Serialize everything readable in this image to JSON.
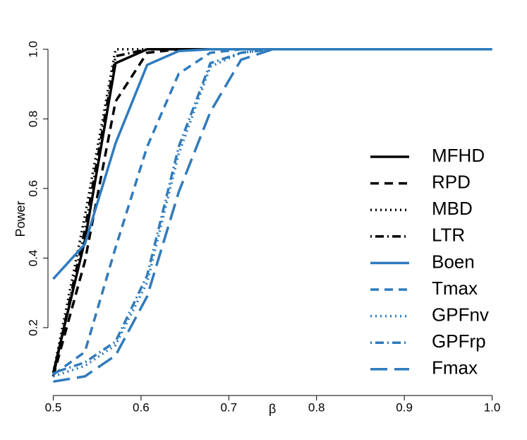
{
  "chart_data": {
    "type": "line",
    "xlabel": "β",
    "ylabel": "Power",
    "x": [
      0.5,
      0.536,
      0.571,
      0.607,
      0.643,
      0.679,
      0.714,
      0.75,
      0.786,
      0.821,
      0.857,
      0.893,
      0.929,
      0.964,
      1.0
    ],
    "xlim": [
      0.494,
      1.006
    ],
    "ylim": [
      0.005,
      1.03
    ],
    "xticks": [
      0.5,
      0.6,
      0.7,
      0.8,
      0.9,
      {
        "value": 1,
        "label": "1.0"
      }
    ],
    "yticks": [
      0.2,
      0.4,
      0.6,
      0.8,
      {
        "value": 1,
        "label": "1.0"
      }
    ],
    "legend": "right",
    "series": [
      {
        "name": "MFHD",
        "color": "#000000",
        "linestyle": "solid",
        "values": [
          0.07,
          0.45,
          0.96,
          1,
          1,
          1,
          1,
          1,
          1,
          1,
          1,
          1,
          1,
          1,
          1
        ]
      },
      {
        "name": "RPD",
        "color": "#000000",
        "linestyle": "dashed",
        "values": [
          0.06,
          0.39,
          0.85,
          0.99,
          1,
          1,
          1,
          1,
          1,
          1,
          1,
          1,
          1,
          1,
          1
        ]
      },
      {
        "name": "MBD",
        "color": "#000000",
        "linestyle": "dotted",
        "values": [
          0.07,
          0.52,
          1,
          1,
          1,
          1,
          1,
          1,
          1,
          1,
          1,
          1,
          1,
          1,
          1
        ]
      },
      {
        "name": "LTR",
        "color": "#000000",
        "linestyle": "dotdash",
        "values": [
          0.06,
          0.48,
          0.98,
          1,
          1,
          1,
          1,
          1,
          1,
          1,
          1,
          1,
          1,
          1,
          1
        ]
      },
      {
        "name": "Boen",
        "color": "#2f7bbd",
        "linestyle": "solid",
        "values": [
          0.34,
          0.44,
          0.73,
          0.955,
          0.995,
          1,
          1,
          1,
          1,
          1,
          1,
          1,
          1,
          1,
          1
        ]
      },
      {
        "name": "Tmax",
        "color": "#2f7bbd",
        "linestyle": "dashed",
        "values": [
          0.065,
          0.13,
          0.43,
          0.72,
          0.93,
          0.99,
          1,
          1,
          1,
          1,
          1,
          1,
          1,
          1,
          1
        ]
      },
      {
        "name": "GPFnv",
        "color": "#2f7bbd",
        "linestyle": "dotted",
        "values": [
          0.06,
          0.09,
          0.15,
          0.33,
          0.7,
          0.95,
          0.99,
          1,
          1,
          1,
          1,
          1,
          1,
          1,
          1
        ]
      },
      {
        "name": "GPFrp",
        "color": "#2f7bbd",
        "linestyle": "dotdash",
        "values": [
          0.07,
          0.1,
          0.16,
          0.35,
          0.72,
          0.96,
          0.99,
          1,
          1,
          1,
          1,
          1,
          1,
          1,
          1
        ]
      },
      {
        "name": "Fmax",
        "color": "#2f7bbd",
        "linestyle": "longdash",
        "values": [
          0.045,
          0.06,
          0.12,
          0.29,
          0.59,
          0.82,
          0.97,
          1,
          1,
          1,
          1,
          1,
          1,
          1,
          1
        ]
      }
    ]
  }
}
